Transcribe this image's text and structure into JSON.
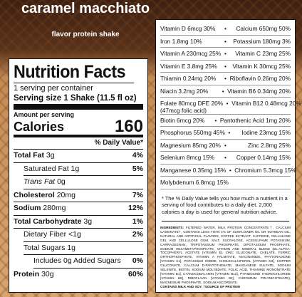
{
  "header": {
    "title": "caramel macchiato",
    "subtitle": "flavor protein shake"
  },
  "facts": {
    "title": "Nutrition Facts",
    "servings": "1 serving per container",
    "serving_size_label": "Serving size",
    "serving_size": "1 Shake (11.5 fl oz)",
    "amount_label": "Amount per serving",
    "calories_label": "Calories",
    "calories": "160",
    "dv_header": "% Daily Value*",
    "rows": [
      {
        "name": "Total Fat",
        "amount": "3g",
        "dv": "4%",
        "sub": [
          {
            "name": "Saturated Fat",
            "amount": "1g",
            "dv": "5%"
          },
          {
            "name": "Trans Fat",
            "amount": "0g"
          }
        ]
      },
      {
        "name": "Cholesterol",
        "amount": "20mg",
        "dv": "7%"
      },
      {
        "name": "Sodium",
        "amount": "280mg",
        "dv": "12%"
      },
      {
        "name": "Total Carbohydrate",
        "amount": "3g",
        "dv": "1%",
        "sub": [
          {
            "name": "Dietary Fiber",
            "amount": "<1g",
            "dv": "2%"
          },
          {
            "name": "Total Sugars",
            "amount": "1g",
            "sub": [
              {
                "name": "Includes 0g Added Sugars",
                "dv": "0%"
              }
            ]
          }
        ]
      },
      {
        "name": "Protein",
        "amount": "30g",
        "dv": "60%"
      }
    ]
  },
  "vitamins": [
    {
      "left": "Vitamin D 6mcg 30%",
      "right": "Calcium 650mg 50%"
    },
    {
      "left": "Iron 1.8mg 10%",
      "right": "Potassium 180mg 3%"
    },
    {
      "left": "Vitamin A 230mcg 25%",
      "right": "Vitamin C 23mg 25%"
    },
    {
      "left": "Vitamin E 3.8mg 25%",
      "right": "Vitamin K 30mcg 25%"
    },
    {
      "left": "Thiamin 0.24mg 20%",
      "right": "Riboflavin 0.26mg 20%"
    },
    {
      "left": "Niacin 3.2mg 20%",
      "right": "Vitamin B6 0.34mg 20%"
    },
    {
      "left": "Folate 80mcg DFE 20%",
      "note": "(47mcg folic acid)",
      "right": "Vitamin B12 0.48mcg 20%"
    },
    {
      "left": "Biotin 6mcg 20%",
      "right": "Pantothenic Acid 1mg 20%"
    },
    {
      "left": "Phosphorus 550mg 45%",
      "right": "Iodine 23mcg 15%"
    },
    {
      "left": "Magnesium 85mg 20%",
      "right": "Zinc 2.8mg 25%"
    },
    {
      "left": "Selenium 8mcg 15%",
      "right": "Copper 0.14mg 15%"
    },
    {
      "left": "Manganese 0.35mg 15%",
      "right": "Chromium 5.3mcg 15%"
    },
    {
      "left": "Molybdenum 6.8mcg 15%"
    }
  ],
  "footnote": "* The % Daily Value tells you how much a nutrient in a serving of food contributes to a daily diet. 2,000 calories a day is used for general nutrition advice.",
  "ingredients_label": "INGREDIENTS:",
  "ingredients": "FILTERED WATER, MILK PROTEIN CONCENTRATE†, CALCIUM CASEINATE†, CONTAINS LESS THAN 1% OF SUNFLOWER OIL OR SOYBEAN OIL, NATURAL AND ARTIFICIAL FLAVORS, COFFEE EXTRACT, CAFFEINE, CELLULOSE GEL AND CELLULOSE GUM, SALT, SUCRALOSE, ACESULFAME POTASSIUM, CARRAGEENAN, TRIPOTASSIUM PHOSPHATE, DIPOTASSIUM PHOSPHATE, SODIUM HEXAMETAPHOSPHATE, VITAMIN AND MINERAL BLEND (DL-ALPHA-TOCOPHERYL ACETATE [VITAMIN E], ZINC GLUCONATE, CHELATE, FERRIC ORTHOPHOSPHATE, VITAMIN A PALMITATE, NIACINAMIDE, PHYTONADIONE [VITAMIN K1], POTASSIUM IODIDE, CHOLECALCIFEROL [VITAMIN D3], COPPER GLUCONATE, CALCIUM D-PANTOTHENATE, MANGANESE SULFATE, SODIUM SELENITE, BIOTIN, SODIUM MOLYBDATE, FOLIC ACID, THIAMINE MONONITRATE [VITAMIN B1], CYANOCOBALAMIN [VITAMIN B12], PYRIDOXINE HYDROCHLORIDE [VITAMIN B6], RIBOFLAVIN [VITAMIN B2], CHROMIUM POLYNICOTINATE), MAGNESIUM PHOSPHATE, SODIUM ASCORBATE.",
  "contains": "CONTAINS MILK AND SOY. †SOURCE OF PROTEIN"
}
